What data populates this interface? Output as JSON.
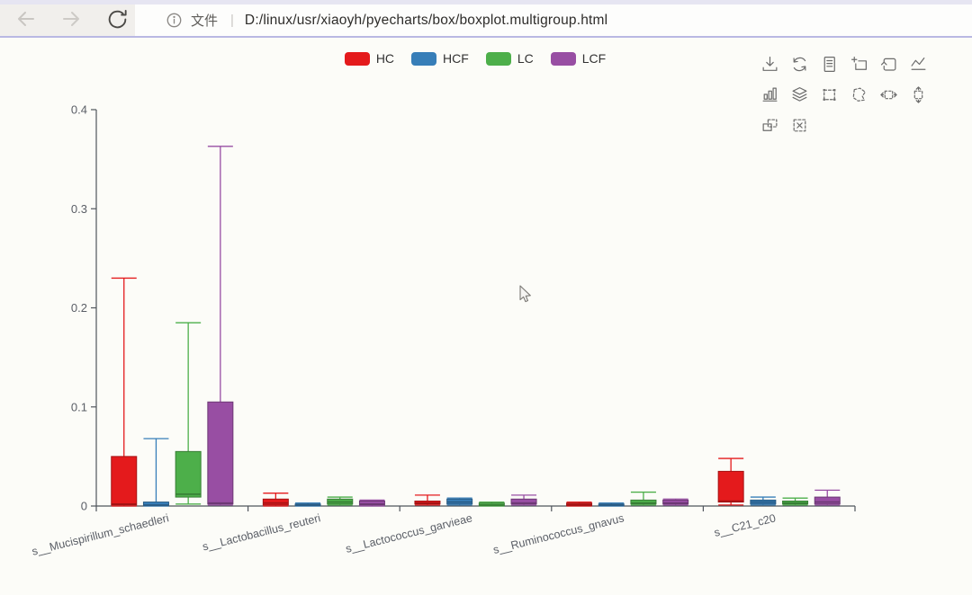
{
  "browser": {
    "url": "D:/linux/usr/xiaoyh/pyecharts/box/boxplot.multigroup.html",
    "file_label": "文件",
    "separator": "|",
    "buttons": [
      "back",
      "forward",
      "refresh"
    ]
  },
  "legend": {
    "items": [
      {
        "label": "HC",
        "color": "#e41a1c"
      },
      {
        "label": "HCF",
        "color": "#377eb8"
      },
      {
        "label": "LC",
        "color": "#4daf4a"
      },
      {
        "label": "LCF",
        "color": "#984ea3"
      }
    ]
  },
  "toolbox": {
    "icons": [
      "save-as-image",
      "restore",
      "data-view",
      "data-zoom",
      "data-zoom-reset",
      "magic-type-line",
      "magic-type-bar",
      "magic-type-stack",
      "brush-rect",
      "brush-polygon",
      "brush-line-x",
      "brush-line-y",
      "brush-keep",
      "brush-clear"
    ]
  },
  "chart_data": {
    "type": "boxplot",
    "categories": [
      "s__Mucispirillum_schaedleri",
      "s__Lactobacillus_reuteri",
      "s__Lactococcus_garvieae",
      "s__Ruminococcus_gnavus",
      "s__C21_c20"
    ],
    "series": [
      {
        "name": "HC",
        "color": "#e41a1c",
        "boxes": [
          [
            0.0,
            0.001,
            0.002,
            0.05,
            0.23
          ],
          [
            0.0,
            0.001,
            0.003,
            0.007,
            0.013
          ],
          [
            0.001,
            0.002,
            0.003,
            0.005,
            0.011
          ],
          [
            0.0,
            0.0005,
            0.0015,
            0.003,
            0.004
          ],
          [
            0.001,
            0.004,
            0.005,
            0.035,
            0.048
          ]
        ]
      },
      {
        "name": "HCF",
        "color": "#377eb8",
        "boxes": [
          [
            0.0,
            0.0005,
            0.001,
            0.004,
            0.068
          ],
          [
            0.0,
            0.0005,
            0.001,
            0.002,
            0.003
          ],
          [
            0.001,
            0.002,
            0.004,
            0.007,
            0.008
          ],
          [
            0.0,
            0.0005,
            0.001,
            0.002,
            0.003
          ],
          [
            0.001,
            0.002,
            0.004,
            0.006,
            0.009
          ]
        ]
      },
      {
        "name": "LC",
        "color": "#4daf4a",
        "boxes": [
          [
            0.002,
            0.009,
            0.012,
            0.055,
            0.185
          ],
          [
            0.001,
            0.002,
            0.004,
            0.007,
            0.009
          ],
          [
            0.0,
            0.0005,
            0.001,
            0.003,
            0.004
          ],
          [
            0.001,
            0.002,
            0.003,
            0.006,
            0.014
          ],
          [
            0.001,
            0.002,
            0.003,
            0.005,
            0.008
          ]
        ]
      },
      {
        "name": "LCF",
        "color": "#984ea3",
        "boxes": [
          [
            0.001,
            0.002,
            0.003,
            0.105,
            0.363
          ],
          [
            0.0,
            0.001,
            0.002,
            0.005,
            0.006
          ],
          [
            0.001,
            0.002,
            0.003,
            0.007,
            0.011
          ],
          [
            0.001,
            0.002,
            0.003,
            0.006,
            0.007
          ],
          [
            0.001,
            0.002,
            0.004,
            0.009,
            0.016
          ]
        ]
      }
    ],
    "ylim": [
      0,
      0.4
    ],
    "yticks": [
      "0",
      "0.1",
      "0.2",
      "0.3",
      "0.4"
    ],
    "grid": false,
    "legend_position": "top-center",
    "xlabel": "",
    "ylabel": "",
    "title": ""
  }
}
